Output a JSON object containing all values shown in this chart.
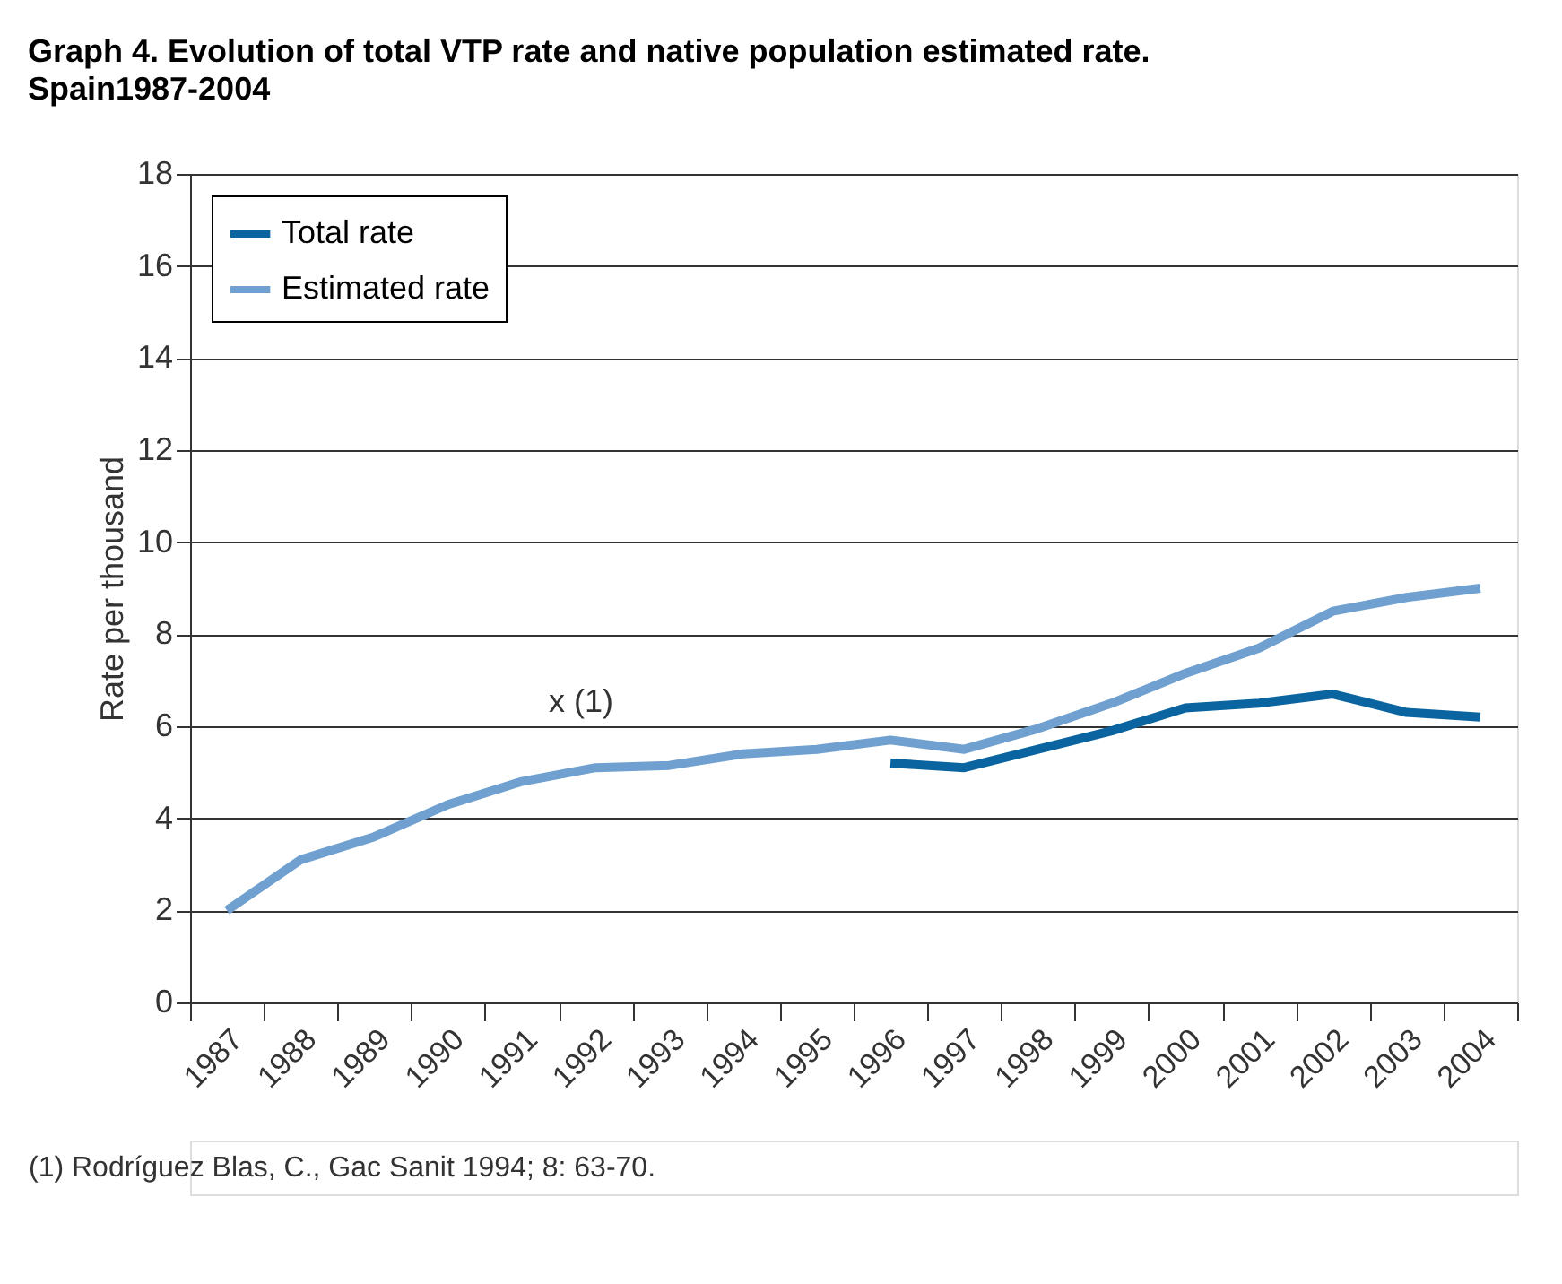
{
  "chart_data": {
    "type": "line",
    "title": "Graph 4.  Evolution of total VTP rate and native population estimated rate.",
    "subtitle": "Spain1987-2004",
    "ylabel": "Rate per thousand",
    "categories": [
      "1987",
      "1988",
      "1989",
      "1990",
      "1991",
      "1992",
      "1993",
      "1994",
      "1995",
      "1996",
      "1997",
      "1998",
      "1999",
      "2000",
      "2001",
      "2002",
      "2003",
      "2004"
    ],
    "series": [
      {
        "name": "Total rate",
        "color": "#0a64a0",
        "values": [
          null,
          null,
          null,
          null,
          null,
          null,
          null,
          null,
          null,
          5.2,
          5.1,
          5.5,
          5.9,
          6.4,
          6.5,
          6.7,
          6.3,
          6.2
        ]
      },
      {
        "name": "Estimated rate",
        "color": "#6fa0d0",
        "values": [
          2.0,
          3.1,
          3.6,
          4.3,
          4.8,
          5.1,
          5.15,
          5.4,
          5.5,
          5.7,
          5.5,
          5.95,
          6.5,
          7.15,
          7.7,
          8.5,
          8.8,
          9.0
        ]
      }
    ],
    "ylim": [
      0,
      18
    ],
    "yticks": [
      0,
      2,
      4,
      6,
      8,
      10,
      12,
      14,
      16,
      18
    ],
    "grid": "y",
    "legend": "top left",
    "marker": "none",
    "line_style": "solid",
    "annotations": [
      "x (1)",
      "(1)  Rodríguez Blas, C., Gac Sanit 1994; 8: 63-70."
    ]
  }
}
